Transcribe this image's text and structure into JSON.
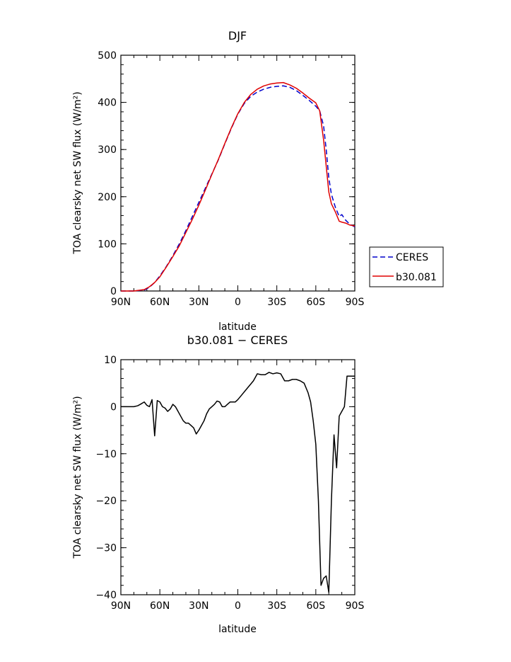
{
  "chart_data": [
    {
      "type": "line",
      "title": "DJF",
      "xlabel": "latitude",
      "ylabel": "TOA clearsky net SW flux (W/m²)",
      "xlim": [
        -90,
        90
      ],
      "ylim": [
        0,
        500
      ],
      "xticks": [
        -90,
        -60,
        -30,
        0,
        30,
        60,
        90
      ],
      "xtick_labels": [
        "90N",
        "60N",
        "30N",
        "0",
        "30S",
        "60S",
        "90S"
      ],
      "yticks": [
        0,
        100,
        200,
        300,
        400,
        500
      ],
      "ytick_labels": [
        "0",
        "100",
        "200",
        "300",
        "400",
        "500"
      ],
      "grid": false,
      "legend": "right",
      "series": [
        {
          "name": "CERES",
          "color": "#0000cc",
          "dash": "dashed",
          "x": [
            -90,
            -80,
            -72,
            -68,
            -64,
            -60,
            -55,
            -50,
            -45,
            -40,
            -35,
            -30,
            -25,
            -20,
            -15,
            -10,
            -5,
            0,
            5,
            10,
            15,
            20,
            25,
            30,
            35,
            40,
            45,
            50,
            55,
            60,
            63,
            66,
            68,
            70,
            72,
            75,
            78,
            80,
            83,
            86,
            90
          ],
          "y": [
            0,
            0,
            2,
            8,
            18,
            32,
            52,
            75,
            100,
            128,
            158,
            188,
            218,
            248,
            278,
            312,
            345,
            375,
            398,
            413,
            422,
            428,
            432,
            434,
            435,
            432,
            425,
            415,
            404,
            392,
            382,
            350,
            300,
            240,
            205,
            178,
            158,
            162,
            150,
            142,
            136
          ]
        },
        {
          "name": "b30.081",
          "color": "#e00000",
          "dash": "solid",
          "x": [
            -90,
            -80,
            -72,
            -68,
            -64,
            -60,
            -55,
            -50,
            -45,
            -40,
            -35,
            -30,
            -25,
            -20,
            -15,
            -10,
            -5,
            0,
            5,
            10,
            15,
            20,
            25,
            30,
            35,
            40,
            45,
            50,
            55,
            60,
            63,
            66,
            68,
            70,
            72,
            75,
            78,
            80,
            83,
            86,
            90
          ],
          "y": [
            0,
            0,
            3,
            9,
            18,
            30,
            51,
            73,
            96,
            124,
            152,
            182,
            214,
            247,
            279,
            313,
            346,
            376,
            400,
            417,
            428,
            435,
            439,
            441,
            442,
            437,
            430,
            420,
            409,
            399,
            382,
            320,
            265,
            210,
            185,
            168,
            148,
            146,
            144,
            140,
            138
          ]
        }
      ]
    },
    {
      "type": "line",
      "title": "b30.081 − CERES",
      "xlabel": "latitude",
      "ylabel": "TOA clearsky net SW flux (W/m²)",
      "xlim": [
        -90,
        90
      ],
      "ylim": [
        -40,
        10
      ],
      "xticks": [
        -90,
        -60,
        -30,
        0,
        30,
        60,
        90
      ],
      "xtick_labels": [
        "90N",
        "60N",
        "30N",
        "0",
        "30S",
        "60S",
        "90S"
      ],
      "yticks": [
        -40,
        -30,
        -20,
        -10,
        0,
        10
      ],
      "ytick_labels": [
        "−40",
        "−30",
        "−20",
        "−10",
        "0",
        "10"
      ],
      "grid": false,
      "series": [
        {
          "color": "#000000",
          "dash": "solid",
          "x": [
            -90,
            -84,
            -80,
            -77,
            -75,
            -72,
            -70,
            -68,
            -66,
            -64,
            -62,
            -60,
            -58,
            -56,
            -54,
            -52,
            -50,
            -48,
            -46,
            -44,
            -42,
            -40,
            -38,
            -36,
            -34,
            -32,
            -30,
            -28,
            -26,
            -24,
            -22,
            -20,
            -18,
            -16,
            -14,
            -12,
            -10,
            -8,
            -6,
            -4,
            -2,
            0,
            3,
            6,
            9,
            12,
            15,
            18,
            21,
            24,
            27,
            30,
            33,
            36,
            39,
            42,
            45,
            48,
            51,
            54,
            56,
            58,
            60,
            62,
            64,
            66,
            68,
            70,
            72,
            74,
            76,
            78,
            80,
            82,
            84,
            86,
            88,
            90
          ],
          "y": [
            0,
            0,
            0,
            0.2,
            0.5,
            1,
            0.3,
            0,
            1.5,
            -6.2,
            1.3,
            1.0,
            0,
            -0.3,
            -1,
            -0.5,
            0.5,
            0,
            -1,
            -2,
            -3,
            -3.5,
            -3.5,
            -4,
            -4.5,
            -5.8,
            -5,
            -4,
            -3,
            -1.5,
            -0.5,
            0,
            0.5,
            1.2,
            1,
            0,
            0,
            0.5,
            1,
            1,
            1,
            1.5,
            2.5,
            3.5,
            4.5,
            5.5,
            7,
            6.8,
            6.8,
            7.3,
            7,
            7.2,
            7,
            5.5,
            5.5,
            5.8,
            5.8,
            5.5,
            5,
            3,
            1,
            -3,
            -8,
            -20,
            -38,
            -36.5,
            -36,
            -39.5,
            -20,
            -6,
            -13,
            -2,
            -1,
            0,
            6.5,
            6.5,
            6.5,
            6.5
          ]
        }
      ]
    }
  ]
}
